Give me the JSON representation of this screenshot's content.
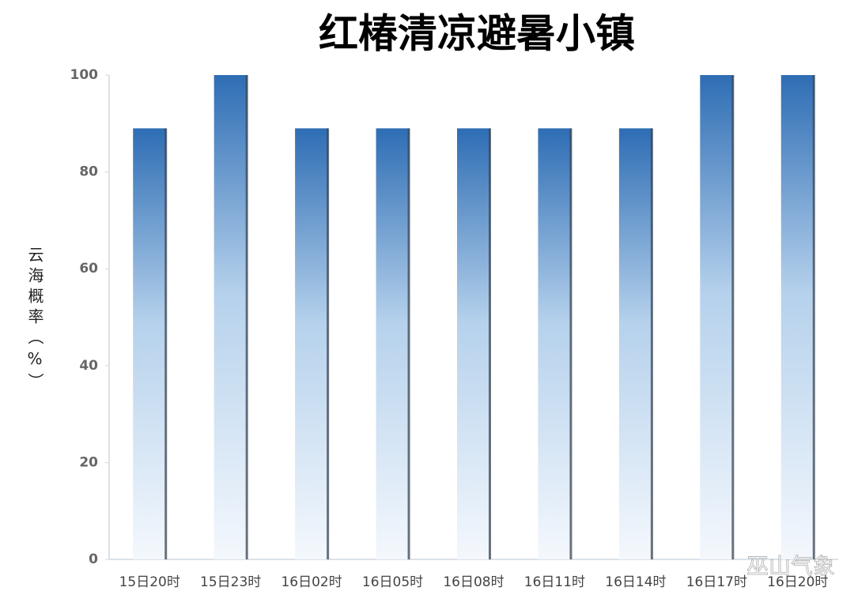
{
  "chart_data": {
    "type": "bar",
    "title": "红椿清凉避暑小镇",
    "y_label": "云海概率（%）",
    "categories": [
      "15日20时",
      "15日23时",
      "16日02时",
      "16日05时",
      "16日08时",
      "16日11时",
      "16日14时",
      "16日17时",
      "16日20时"
    ],
    "values": [
      89,
      100,
      89,
      89,
      89,
      89,
      89,
      100,
      100
    ],
    "color": "#2e6db4",
    "ylim": [
      0,
      100
    ],
    "yticks": [
      0,
      20,
      40,
      60,
      80,
      100
    ],
    "grid": false,
    "watermark": "巫山气象"
  }
}
